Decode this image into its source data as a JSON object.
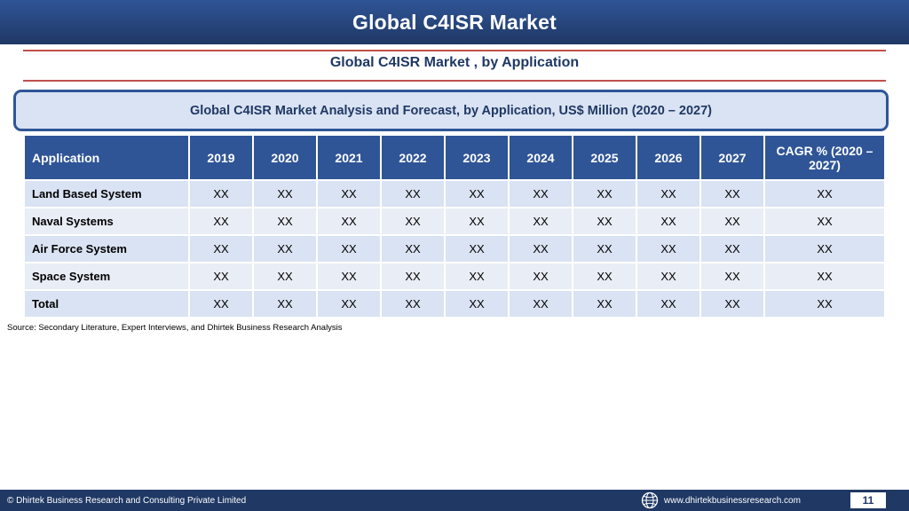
{
  "header": {
    "title": "Global C4ISR Market"
  },
  "subtitle": "Global C4ISR Market , by Application",
  "banner": "Global C4ISR Market  Analysis and Forecast, by Application, US$ Million (2020 – 2027)",
  "table": {
    "headers": [
      "Application",
      "2019",
      "2020",
      "2021",
      "2022",
      "2023",
      "2024",
      "2025",
      "2026",
      "2027",
      "CAGR % (2020 – 2027)"
    ],
    "rows": [
      [
        "Land Based System",
        "XX",
        "XX",
        "XX",
        "XX",
        "XX",
        "XX",
        "XX",
        "XX",
        "XX",
        "XX"
      ],
      [
        "Naval Systems",
        "XX",
        "XX",
        "XX",
        "XX",
        "XX",
        "XX",
        "XX",
        "XX",
        "XX",
        "XX"
      ],
      [
        "Air Force System",
        "XX",
        "XX",
        "XX",
        "XX",
        "XX",
        "XX",
        "XX",
        "XX",
        "XX",
        "XX"
      ],
      [
        "Space System",
        "XX",
        "XX",
        "XX",
        "XX",
        "XX",
        "XX",
        "XX",
        "XX",
        "XX",
        "XX"
      ],
      [
        "Total",
        "XX",
        "XX",
        "XX",
        "XX",
        "XX",
        "XX",
        "XX",
        "XX",
        "XX",
        "XX"
      ]
    ]
  },
  "source": "Source: Secondary Literature, Expert Interviews, and Dhirtek Business Research Analysis",
  "footer": {
    "copyright": "© Dhirtek Business Research and Consulting Private Limited",
    "website": "www.dhirtekbusinessresearch.com",
    "page_number": "11",
    "icon": "globe-icon"
  },
  "colors": {
    "header_bg": "#2f5597",
    "footer_bg": "#1f3864",
    "accent_rule": "#c0504d",
    "row_light": "#dae3f3"
  }
}
